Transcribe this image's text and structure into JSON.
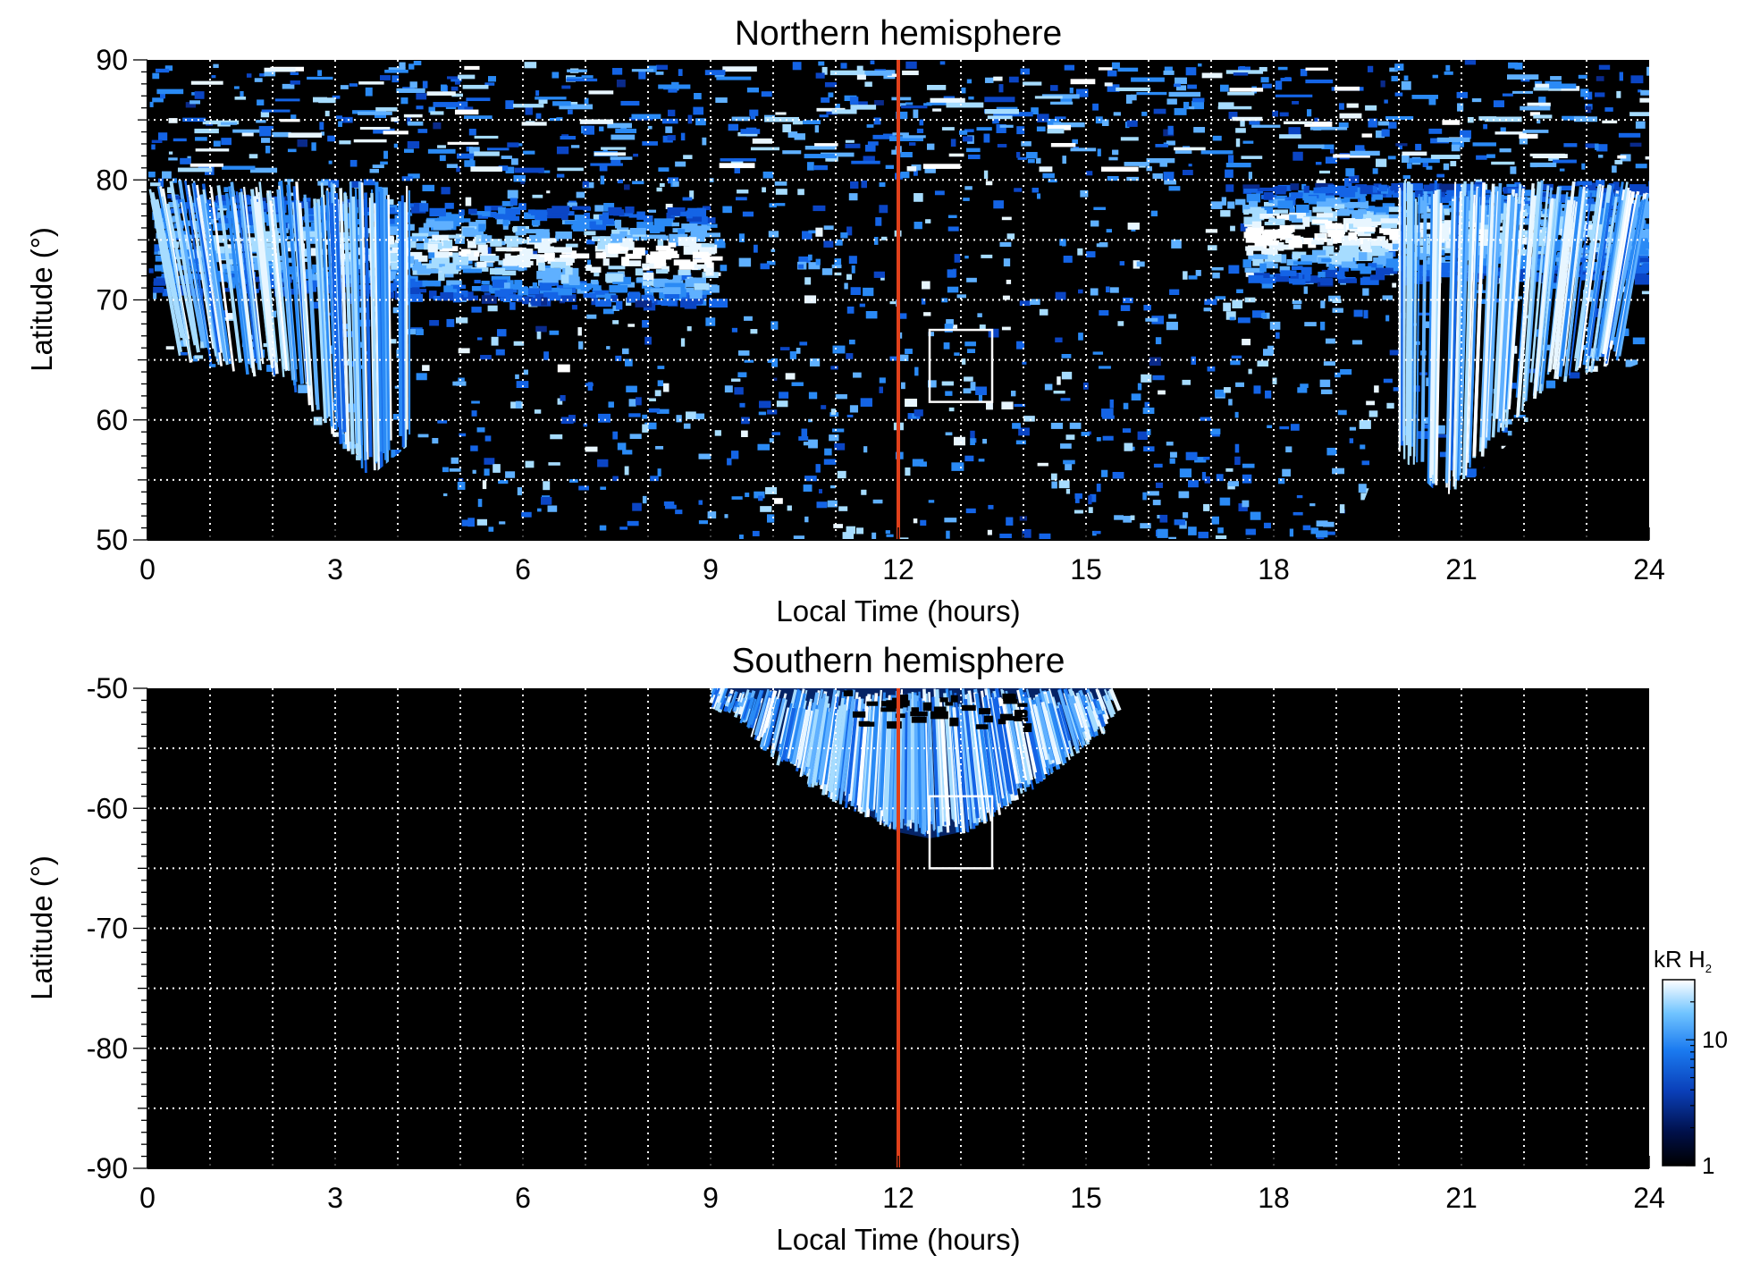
{
  "chart_data": [
    {
      "type": "heatmap",
      "title": "Northern hemisphere",
      "xlabel": "Local Time (hours)",
      "ylabel": "Latitude (°)",
      "xlim": [
        0,
        24
      ],
      "ylim": [
        50,
        90
      ],
      "x_ticks": [
        0,
        3,
        6,
        9,
        12,
        15,
        18,
        21,
        24
      ],
      "y_ticks": [
        50,
        60,
        70,
        80,
        90
      ],
      "grid": true,
      "grid_x_step_hours": 1,
      "grid_y_step_deg": 5,
      "background": "#000000",
      "noon_marker": {
        "x": 12,
        "color": "#e0401a"
      },
      "box": {
        "x": [
          12.5,
          13.5
        ],
        "y": [
          61.5,
          67.5
        ],
        "color": "#ffffff"
      },
      "coverage": {
        "type": "full_disk_projection",
        "polar_cap_lat": 80,
        "morning_edge": [
          [
            0,
            65
          ],
          [
            2,
            63
          ],
          [
            3.5,
            55
          ],
          [
            4.2,
            58
          ],
          [
            5,
            50
          ]
        ],
        "evening_edge": [
          [
            19.2,
            50
          ],
          [
            19.8,
            58
          ],
          [
            20.8,
            53
          ],
          [
            22.5,
            62
          ],
          [
            24,
            65
          ]
        ]
      },
      "features": [
        {
          "name": "auroral-oval-dawn",
          "lt_range": [
            0,
            9
          ],
          "lat_range": [
            70,
            80
          ],
          "peak_lat": 75,
          "intensity": "high"
        },
        {
          "name": "auroral-oval-dusk",
          "lt_range": [
            17.5,
            24
          ],
          "lat_range": [
            70,
            80
          ],
          "peak_lat": 76,
          "intensity": "high"
        },
        {
          "name": "noise-dayside",
          "lt_range": [
            5,
            19.5
          ],
          "lat_range": [
            50,
            80
          ],
          "intensity": "low"
        },
        {
          "name": "polar-cap",
          "lt_range": [
            0,
            24
          ],
          "lat_range": [
            80,
            90
          ],
          "intensity": "low"
        }
      ]
    },
    {
      "type": "heatmap",
      "title": "Southern hemisphere",
      "xlabel": "Local Time (hours)",
      "ylabel": "Latitude (°)",
      "xlim": [
        0,
        24
      ],
      "ylim": [
        -90,
        -50
      ],
      "x_ticks": [
        0,
        3,
        6,
        9,
        12,
        15,
        18,
        21,
        24
      ],
      "y_ticks": [
        -90,
        -80,
        -70,
        -60,
        -50
      ],
      "grid": true,
      "grid_x_step_hours": 1,
      "grid_y_step_deg": 5,
      "background": "#000000",
      "noon_marker": {
        "x": 12,
        "color": "#e0401a"
      },
      "box": {
        "x": [
          12.5,
          13.5
        ],
        "y": [
          -65,
          -59
        ],
        "color": "#ffffff"
      },
      "coverage": {
        "type": "partial_fan",
        "lt_range": [
          9,
          15.4
        ],
        "lat_top": -50,
        "lower_edge": [
          [
            9,
            -50
          ],
          [
            10,
            -55
          ],
          [
            11,
            -59
          ],
          [
            12,
            -62
          ],
          [
            12.5,
            -62.5
          ],
          [
            13,
            -62
          ],
          [
            14,
            -58
          ],
          [
            15,
            -54
          ],
          [
            15.4,
            -52
          ]
        ]
      },
      "features": [
        {
          "name": "dayside-fan",
          "lt_range": [
            9,
            15.4
          ],
          "lat_range": [
            -63,
            -50
          ],
          "intensity": "medium"
        }
      ]
    }
  ],
  "colorbar": {
    "title": "kR H",
    "title_subscript": "2",
    "scale": "log",
    "range": [
      1,
      30
    ],
    "ticks": [
      1,
      10
    ],
    "tick_labels": [
      "1",
      "10"
    ],
    "colors": [
      "#000000",
      "#001a66",
      "#0a50d0",
      "#1e90ff",
      "#bfe6ff",
      "#ffffff"
    ]
  }
}
